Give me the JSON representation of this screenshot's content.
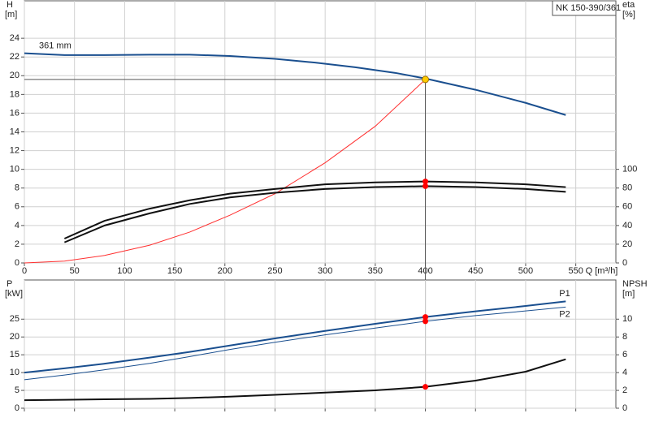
{
  "chart_data": [
    {
      "type": "line",
      "pump_label": "NK 150-390/361",
      "annotation": "361 mm",
      "ylabel": "H",
      "yunit": "[m]",
      "y2label": "eta",
      "y2unit": "[%]",
      "xlabel": "Q [m³/h]",
      "xlim": [
        0,
        590
      ],
      "xticks": [
        0,
        50,
        100,
        150,
        200,
        250,
        300,
        350,
        400,
        450,
        500,
        550
      ],
      "ylim": [
        0,
        28
      ],
      "yticks": [
        0,
        2,
        4,
        6,
        8,
        10,
        12,
        14,
        16,
        18,
        20,
        22,
        24
      ],
      "y2lim": [
        0,
        280
      ],
      "y2ticks": [
        0,
        20,
        40,
        60,
        80,
        100
      ],
      "grid": true,
      "xtick_labels": true,
      "series": [
        {
          "color": "#1a4f8f",
          "width": 2,
          "axis": "y",
          "x": [
            0,
            40,
            80,
            125,
            165,
            205,
            250,
            290,
            330,
            370,
            400,
            450,
            500,
            540
          ],
          "values": [
            22.4,
            22.2,
            22.2,
            22.25,
            22.25,
            22.1,
            21.8,
            21.4,
            20.9,
            20.3,
            19.7,
            18.5,
            17.1,
            15.8
          ]
        },
        {
          "color": "#ff3030",
          "width": 1,
          "axis": "y",
          "x": [
            0,
            40,
            80,
            125,
            165,
            205,
            250,
            300,
            350,
            400
          ],
          "values": [
            0,
            0.2,
            0.8,
            1.9,
            3.3,
            5.1,
            7.4,
            10.7,
            14.6,
            19.6
          ]
        },
        {
          "color": "#111111",
          "width": 2,
          "axis": "y2",
          "x": [
            40,
            80,
            125,
            165,
            205,
            250,
            300,
            350,
            400,
            450,
            500,
            540
          ],
          "values": [
            26,
            45,
            58,
            67,
            74,
            79,
            84,
            86,
            87,
            86,
            84,
            81
          ]
        },
        {
          "color": "#111111",
          "width": 2,
          "axis": "y2",
          "x": [
            40,
            80,
            125,
            165,
            205,
            250,
            300,
            350,
            400,
            450,
            500,
            540
          ],
          "values": [
            22,
            40,
            53,
            63,
            70,
            75,
            79,
            81,
            82,
            81,
            79,
            76
          ]
        }
      ],
      "operating_point": {
        "x": 400,
        "y": 19.6,
        "color": "#ffcc00"
      },
      "markers": [
        {
          "x": 400,
          "y": 87,
          "axis": "y2",
          "color": "#ff0000"
        },
        {
          "x": 400,
          "y": 82,
          "axis": "y2",
          "color": "#ff0000"
        }
      ]
    },
    {
      "type": "line",
      "ylabel": "P",
      "yunit": "[kW]",
      "y2label": "NPSH",
      "y2unit": "[m]",
      "xlim": [
        0,
        590
      ],
      "xticks": [
        0,
        50,
        100,
        150,
        200,
        250,
        300,
        350,
        400,
        450,
        500,
        550
      ],
      "ylim": [
        0,
        36
      ],
      "yticks": [
        0,
        5,
        10,
        15,
        20,
        25
      ],
      "y2lim": [
        0,
        14.4
      ],
      "y2ticks": [
        0,
        2,
        4,
        6,
        8,
        10
      ],
      "grid": true,
      "xtick_labels": false,
      "series": [
        {
          "name": "P1",
          "color": "#1a4f8f",
          "width": 2,
          "axis": "y",
          "x": [
            0,
            40,
            80,
            125,
            165,
            205,
            250,
            300,
            350,
            400,
            450,
            500,
            540
          ],
          "values": [
            10,
            11.2,
            12.5,
            14.2,
            15.8,
            17.6,
            19.6,
            21.7,
            23.7,
            25.6,
            27.2,
            28.7,
            30
          ]
        },
        {
          "name": "P2",
          "color": "#1a4f8f",
          "width": 1,
          "axis": "y",
          "x": [
            0,
            40,
            80,
            125,
            165,
            205,
            250,
            300,
            350,
            400,
            450,
            500,
            540
          ],
          "values": [
            8,
            9.3,
            10.8,
            12.6,
            14.5,
            16.5,
            18.5,
            20.6,
            22.5,
            24.4,
            26,
            27.3,
            28.4
          ]
        },
        {
          "color": "#111111",
          "width": 2,
          "axis": "y2",
          "x": [
            0,
            40,
            80,
            125,
            165,
            205,
            250,
            300,
            350,
            400,
            450,
            500,
            540
          ],
          "values": [
            0.9,
            0.95,
            1.0,
            1.05,
            1.15,
            1.3,
            1.5,
            1.75,
            2.0,
            2.4,
            3.1,
            4.1,
            5.5
          ]
        }
      ],
      "markers": [
        {
          "x": 400,
          "y": 25.6,
          "axis": "y",
          "color": "#ff0000"
        },
        {
          "x": 400,
          "y": 24.4,
          "axis": "y",
          "color": "#ff0000"
        },
        {
          "x": 400,
          "y": 2.4,
          "axis": "y2",
          "color": "#ff0000"
        }
      ]
    }
  ]
}
